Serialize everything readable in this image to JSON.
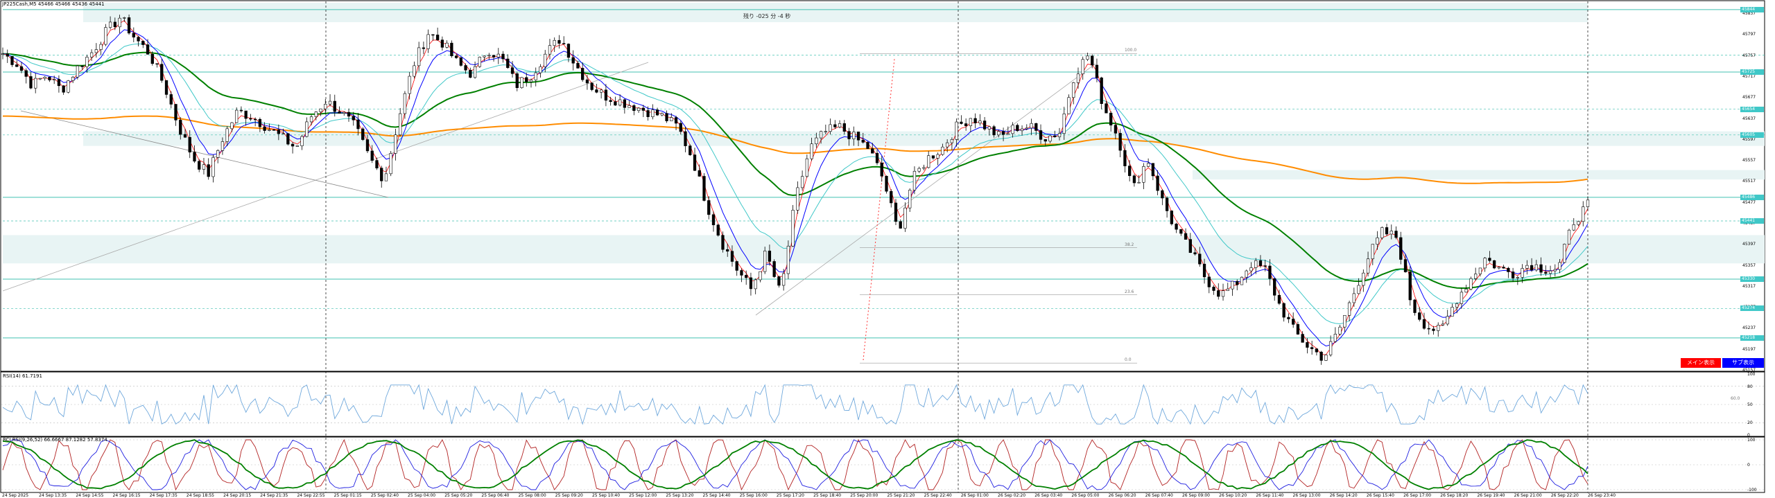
{
  "header": {
    "symbol_line": "JP225Cash,M5  45466 45466 45436 45441",
    "timer": "残り -025 分 -4 秒"
  },
  "buttons": {
    "main_label": "メイン表示",
    "sub_label": "サブ表示"
  },
  "indicators": {
    "rsi_label": "RSI(14) 61.7191",
    "stoch_label": "RCI RSI(9,26,52) 66.6667 87.1282 57.8374"
  },
  "colors": {
    "candle": "#000000",
    "ma_fast": "#ff0000",
    "ma_mid": "#0000ff",
    "ma_slow": "#40c8c8",
    "ma_200": "#008000",
    "ma_long": "#ff8c00",
    "hline": "#40c0b0",
    "zone": "#e8f4f4",
    "rsi": "#6fa8dc",
    "osc_red": "#b22222",
    "osc_blue": "#1e1ee0",
    "osc_green": "#008000",
    "btn_main": "#ff0000",
    "btn_sub": "#0000ff",
    "tag": "#40c8c8"
  },
  "price_axis": [
    "45837",
    "45797",
    "45757",
    "45717",
    "45677",
    "45637",
    "45597",
    "45557",
    "45517",
    "45477",
    "45437",
    "45397",
    "45357",
    "45317",
    "45277",
    "45237",
    "45197",
    "45157"
  ],
  "price_tags": [
    "45844",
    "45725",
    "45654",
    "45605",
    "45486",
    "45441",
    "45330",
    "45274",
    "45218"
  ],
  "rsi_axis": [
    "100",
    "80",
    "50",
    "20",
    "0"
  ],
  "rsi_level_value": "60.0",
  "osc_axis": [
    "100",
    "0",
    "-100"
  ],
  "fibonacci": [
    "100.0",
    "38.2",
    "23.6",
    "0.0"
  ],
  "time_axis": [
    "24 Sep 2025",
    "24 Sep 13:35",
    "24 Sep 14:55",
    "24 Sep 16:15",
    "24 Sep 17:35",
    "24 Sep 18:55",
    "24 Sep 20:15",
    "24 Sep 21:35",
    "24 Sep 22:55",
    "25 Sep 01:15",
    "25 Sep 02:40",
    "25 Sep 04:00",
    "25 Sep 05:20",
    "25 Sep 06:40",
    "25 Sep 08:00",
    "25 Sep 09:20",
    "25 Sep 10:40",
    "25 Sep 12:00",
    "25 Sep 13:20",
    "25 Sep 14:40",
    "25 Sep 16:00",
    "25 Sep 17:20",
    "25 Sep 18:40",
    "25 Sep 20:00",
    "25 Sep 21:20",
    "25 Sep 22:40",
    "26 Sep 01:00",
    "26 Sep 02:20",
    "26 Sep 03:40",
    "26 Sep 05:00",
    "26 Sep 06:20",
    "26 Sep 07:40",
    "26 Sep 09:00",
    "26 Sep 10:20",
    "26 Sep 11:40",
    "26 Sep 13:00",
    "26 Sep 14:20",
    "26 Sep 15:40",
    "26 Sep 17:00",
    "26 Sep 18:20",
    "26 Sep 19:40",
    "26 Sep 21:00",
    "26 Sep 22:20",
    "26 Sep 23:40"
  ],
  "chart_data": {
    "type": "candlestick",
    "ylim": [
      45157,
      45857
    ],
    "price_path": [
      45760,
      45740,
      45700,
      45720,
      45690,
      45730,
      45760,
      45800,
      45830,
      45790,
      45760,
      45700,
      45620,
      45560,
      45530,
      45600,
      45650,
      45640,
      45620,
      45600,
      45580,
      45640,
      45670,
      45650,
      45620,
      45560,
      45520,
      45640,
      45740,
      45800,
      45780,
      45740,
      45720,
      45770,
      45750,
      45700,
      45720,
      45760,
      45790,
      45740,
      45700,
      45680,
      45670,
      45660,
      45650,
      45640,
      45620,
      45560,
      45470,
      45400,
      45350,
      45310,
      45380,
      45300,
      45480,
      45580,
      45610,
      45620,
      45600,
      45580,
      45520,
      45420,
      45520,
      45560,
      45580,
      45620,
      45640,
      45620,
      45600,
      45620,
      45620,
      45600,
      45610,
      45720,
      45760,
      45660,
      45600,
      45500,
      45560,
      45480,
      45420,
      45380,
      45330,
      45300,
      45320,
      45360,
      45350,
      45280,
      45230,
      45200,
      45180,
      45230,
      45300,
      45370,
      45420,
      45410,
      45280,
      45240,
      45230,
      45290,
      45330,
      45370,
      45350,
      45340,
      45360,
      45350,
      45350,
      45440,
      45470
    ]
  }
}
